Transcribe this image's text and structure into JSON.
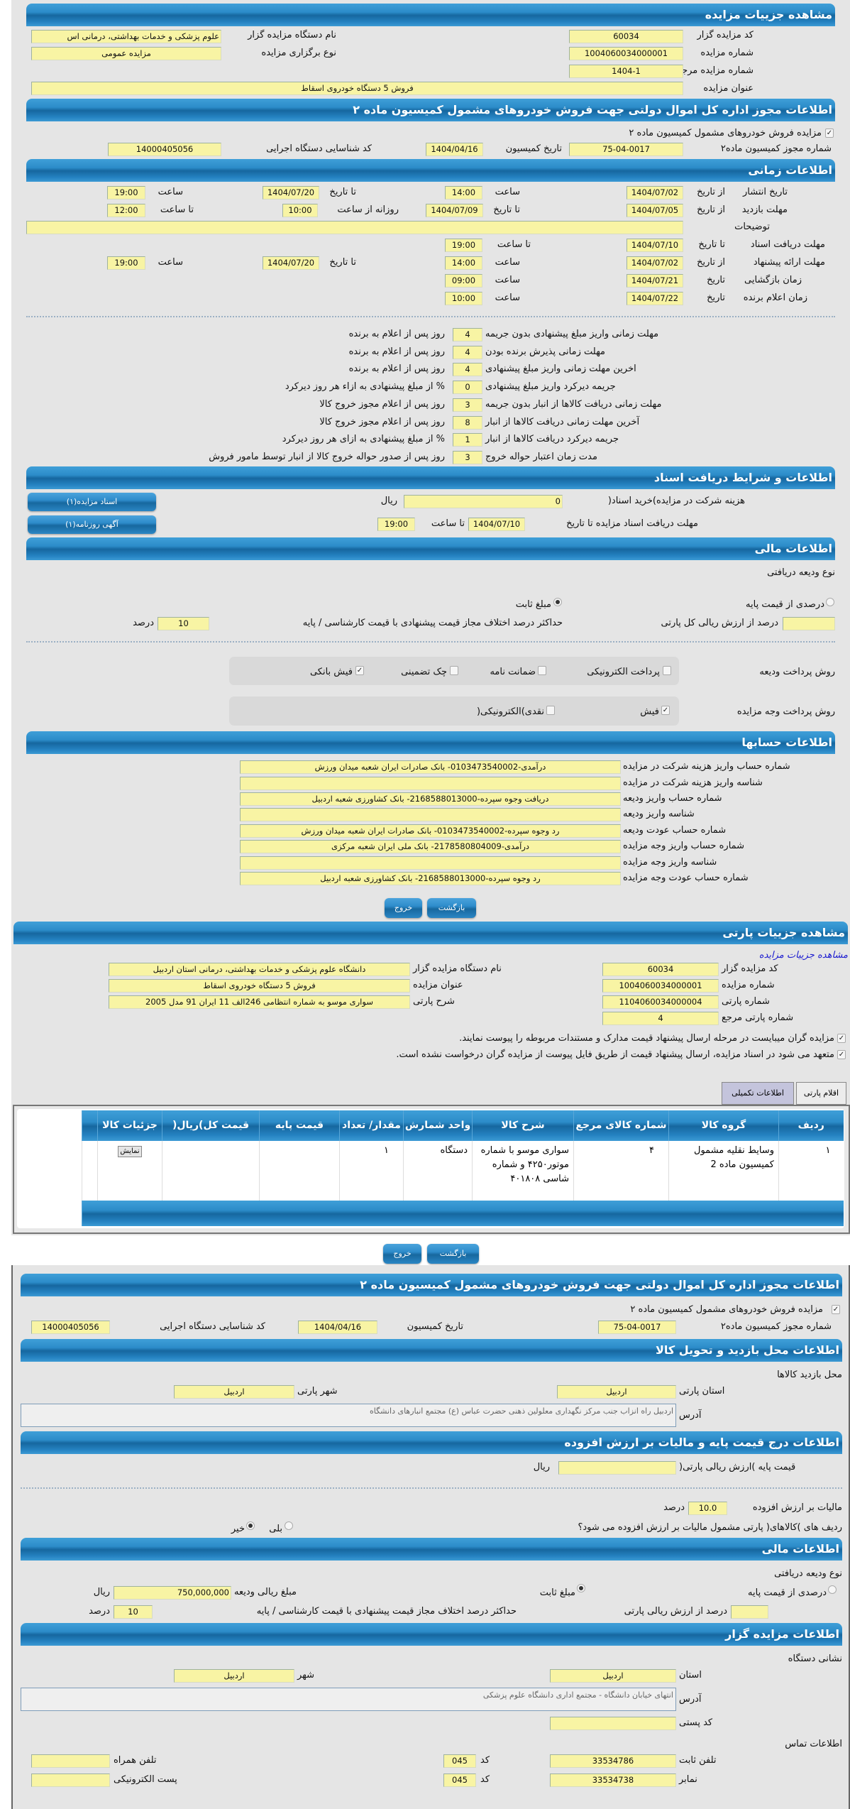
{
  "auction": {
    "title": "مشاهده جزییات مزایده",
    "code_label": "کد مزایده گزار",
    "code": "60034",
    "org_label": "نام دستگاه مزایده گزار",
    "org": "علوم پزشکی و خدمات بهداشتی، درمانی اس",
    "number_label": "شماره مزایده",
    "number": "1004060034000001",
    "type_label": "نوع برگزاری مزایده",
    "type": "مزایده عمومی",
    "ref_label": "شماره مزایده مرجع",
    "ref": "1404-1",
    "subject_label": "عنوان مزایده",
    "subject": "فروش 5 دستگاه خودروی اسقاط"
  },
  "permit": {
    "title": "اطلاعات مجوز اداره کل اموال دولتی جهت فروش خودروهای مشمول کمیسیون ماده ۲",
    "checkbox_label": "مزایده فروش خودروهای مشمول کمیسیون ماده ۲",
    "checked": true,
    "permit_no_label": "شماره مجوز کمیسیون ماده۲",
    "permit_no": "75-04-0017",
    "date_label": "تاریخ کمیسیون",
    "date": "1404/04/16",
    "org_id_label": "کد شناسایی دستگاه اجرایی",
    "org_id": "14000405056"
  },
  "timing": {
    "title": "اطلاعات زمانی",
    "from_date": "از تاریخ",
    "to_date": "تا تاریخ",
    "date": "تاریخ",
    "hour": "ساعت",
    "to_hour": "تا ساعت",
    "daily_from": "روزانه از ساعت",
    "publish_label": "تاریخ انتشار",
    "publish_from": "1404/07/02",
    "publish_from_time": "14:00",
    "publish_to": "1404/07/20",
    "publish_to_time": "19:00",
    "visit_label": "مهلت بازدید",
    "visit_from": "1404/07/05",
    "visit_to": "1404/07/09",
    "visit_daily_from": "10:00",
    "visit_daily_to": "12:00",
    "desc_label": "توضیحات",
    "desc": "",
    "docs_label": "مهلت دریافت اسناد",
    "docs_to": "1404/07/10",
    "docs_to_time": "19:00",
    "offer_label": "مهلت ارائه پیشنهاد",
    "offer_from": "1404/07/02",
    "offer_from_time": "14:00",
    "offer_to": "1404/07/20",
    "offer_to_time": "19:00",
    "opening_label": "زمان بازگشایی",
    "opening_date": "1404/07/21",
    "opening_time": "09:00",
    "winner_label": "زمان اعلام برنده",
    "winner_date": "1404/07/22",
    "winner_time": "10:00"
  },
  "deadlines": [
    {
      "label": "مهلت زمانی واریز مبلغ پیشنهادی بدون جریمه",
      "value": "4",
      "suffix": "روز پس از اعلام به برنده"
    },
    {
      "label": "مهلت زمانی پذیرش برنده بودن",
      "value": "4",
      "suffix": "روز پس از اعلام به برنده"
    },
    {
      "label": "اخرین مهلت زمانی واریز مبلغ پیشنهادی",
      "value": "4",
      "suffix": "روز پس از اعلام به برنده"
    },
    {
      "label": "جریمه دیرکرد واریز مبلغ پیشنهادی",
      "value": "0",
      "suffix": "% از مبلغ پیشنهادی به ازاء هر روز دیرکرد"
    },
    {
      "label": "مهلت زمانی دریافت کالاها از انبار بدون جریمه",
      "value": "3",
      "suffix": "روز پس از اعلام مجوز خروج کالا"
    },
    {
      "label": "آخرین مهلت زمانی دریافت کالاها از انبار",
      "value": "8",
      "suffix": "روز پس از اعلام مجوز خروج کالا"
    },
    {
      "label": "جریمه دیرکرد دریافت کالاها از انبار",
      "value": "1",
      "suffix": "% از مبلغ پیشنهادی به ازای هر روز دیرکرد"
    },
    {
      "label": "مدت زمان اعتبار حواله خروج",
      "value": "3",
      "suffix": "روز پس از صدور حواله خروج کالا از انبار توسط مامور فروش"
    }
  ],
  "documents": {
    "title": "اطلاعات و شرایط دریافت اسناد",
    "fee_label": "هزینه شرکت در مزایده)خرید اسناد(",
    "fee": "0",
    "currency": "ریال",
    "deadline_label": "مهلت دریافت اسناد مزایده تا تاریخ",
    "deadline_date": "1404/07/10",
    "to_hour": "تا ساعت",
    "deadline_time": "19:00",
    "docs_button": "اسناد مزایده(۱)",
    "ad_button": "آگهی روزنامه(۱)"
  },
  "finance": {
    "title": "اطلاعات مالی",
    "deposit_type_label": "نوع ودیعه دریافتی",
    "opt_percent": "درصدی از قیمت پایه",
    "opt_fixed": "مبلغ ثابت",
    "selected": "مبلغ ثابت",
    "percent_of_total": "درصد از ارزش ریالی کل پارتی",
    "percent_value": "",
    "max_diff_label": "حداکثر درصد اختلاف مجاز قیمت پیشنهادی با قیمت کارشناسی / پایه",
    "max_diff": "10",
    "percent_unit": "درصد",
    "deposit_method_label": "روش پرداخت ودیعه",
    "deposit_methods": [
      {
        "label": "پرداخت الکترونیکی",
        "checked": false
      },
      {
        "label": "ضمانت نامه",
        "checked": false
      },
      {
        "label": "چک تضمینی",
        "checked": false
      },
      {
        "label": "فیش بانکی",
        "checked": true
      }
    ],
    "payment_method_label": "روش پرداخت وجه مزایده",
    "payment_methods": [
      {
        "label": "فیش",
        "checked": true
      },
      {
        "label": "نقدی)الکترونیکی(",
        "checked": false
      }
    ]
  },
  "accounts": {
    "title": "اطلاعات حسابها",
    "rows": [
      {
        "label": "شماره حساب واریز هزینه شرکت در مزایده",
        "value": "درآمدی-0103473540002- بانک صادرات ایران شعبه میدان ورزش"
      },
      {
        "label": "شناسه واریز هزینه شرکت در مزایده",
        "value": ""
      },
      {
        "label": "شماره حساب واریز ودیعه",
        "value": "دریافت وجوه سپرده-2168588013000- بانک کشاورزی شعبه اردبیل"
      },
      {
        "label": "شناسه واریز ودیعه",
        "value": ""
      },
      {
        "label": "شماره حساب عودت ودیعه",
        "value": "رد وجوه سپرده-0103473540002- بانک صادرات ایران شعبه میدان ورزش"
      },
      {
        "label": "شماره حساب واریز وجه مزایده",
        "value": "درآمدی-2178580804009- بانک ملی ایران شعبه مرکزی"
      },
      {
        "label": "شناسه واریز وجه مزایده",
        "value": ""
      },
      {
        "label": "شماره حساب عودت وجه مزایده",
        "value": "رد وجوه سپرده-2168588013000- بانک کشاورزی شعبه اردبیل"
      }
    ]
  },
  "actions": {
    "back": "بازگشت",
    "exit": "خروج"
  },
  "lot": {
    "title": "مشاهده جزییات پارتی",
    "auction_link": "مشاهده جزییات مزایده",
    "code_label": "کد مزایده گزار",
    "code": "60034",
    "number_label": "شماره مزایده",
    "number": "1004060034000001",
    "lot_no_label": "شماره پارتی",
    "lot_no": "1104060034000004",
    "lot_ref_label": "شماره پارتی مرجع",
    "lot_ref": "4",
    "org_label": "نام دستگاه مزایده گزار",
    "org": "دانشگاه علوم پزشکی و خدمات بهداشتی، درمانی استان اردبیل",
    "subject_label": "عنوان مزایده",
    "subject": "فروش 5 دستگاه خودروی اسقاط",
    "desc_label": "شرح پارتی",
    "desc": "سواری موسو  به شماره انتظامی 246الف 11 ایران  91 مدل 2005",
    "check1": "مزایده گران میبایست در مرحله ارسال پیشنهاد قیمت مدارک و مستندات مربوطه را پیوست نمایند.",
    "check2": "متعهد می شود در اسناد مزایده، ارسال پیشنهاد قیمت از طریق فایل پیوست از مزایده گران درخواست نشده است.",
    "tabs": [
      {
        "label": "اقلام پارتی",
        "active": true
      },
      {
        "label": "اطلاعات تکمیلی",
        "active": false
      }
    ],
    "table": {
      "headers": [
        "ردیف",
        "گروه کالا",
        "شماره کالای مرجع",
        "شرح کالا",
        "واحد شمارش",
        "مقدار/ تعداد",
        "قیمت پایه",
        "قیمت کل)ریال(",
        "جزئیات کالا"
      ],
      "rows": [
        {
          "row": "۱",
          "group": "وسایط نقلیه مشمول کمیسیون ماده 2",
          "ref": "۴",
          "desc": "سواری موسو با شماره موتور۴۲۵۰ و شماره شاسی ۴۰۱۸۰۸",
          "unit": "دستگاه",
          "qty": "۱",
          "base_price": "",
          "total_price": "",
          "details_button": "نمایش"
        }
      ]
    }
  },
  "permit2": {
    "title": "اطلاعات مجوز اداره کل اموال دولتی جهت فروش خودروهای مشمول کمیسیون ماده ۲",
    "checkbox_label": "مزایده فروش خودروهای مشمول کمیسیون ماده ۲",
    "permit_no_label": "شماره مجوز کمیسیون ماده۲",
    "permit_no": "75-04-0017",
    "date_label": "تاریخ کمیسیون",
    "date": "1404/04/16",
    "org_id_label": "کد شناسایی دستگاه اجرایی",
    "org_id": "14000405056"
  },
  "visit": {
    "title": "اطلاعات محل بازدید و تحویل کالا",
    "place_label": "محل بازدید کالاها",
    "province_label": "استان پارتی",
    "province": "اردبیل",
    "city_label": "شهر پارتی",
    "city": "اردبیل",
    "address_label": "آدرس",
    "address": "اردبیل  راه انزاب جنب مرکز نگهداری معلولین ذهنی حضرت عباس (ع)  مجتمع انبارهای دانشگاه"
  },
  "pricing": {
    "title": "اطلاعات درج قیمت پایه و مالیات بر ارزش افزوده",
    "base_label": "قیمت پایه )ارزش ریالی پارتی(",
    "base": "",
    "currency": "ریال",
    "vat_label": "مالیات بر ارزش افزوده",
    "vat": "10.0",
    "percent": "درصد",
    "vat_question": "ردیف های )کالاهای( پارتی مشمول مالیات بر ارزش افزوده می شود؟",
    "yes": "بلی",
    "no": "خیر",
    "selected": "خیر"
  },
  "finance2": {
    "title": "اطلاعات مالی",
    "deposit_type_label": "نوع ودیعه دریافتی",
    "opt_percent": "درصدی از قیمت پایه",
    "opt_fixed": "مبلغ ثابت",
    "selected": "مبلغ ثابت",
    "deposit_amount_label": "مبلغ ریالی ودیعه",
    "deposit_amount": "750,000,000",
    "currency": "ریال",
    "percent_of_total": "درصد از ارزش ریالی پارتی",
    "percent_value": "",
    "max_diff_label": "حداکثر درصد اختلاف مجاز قیمت پیشنهادی با قیمت کارشناسی / پایه",
    "max_diff": "10",
    "percent_unit": "درصد"
  },
  "organizer": {
    "title": "اطلاعات مزایده گزار",
    "address_section": "نشانی دستگاه",
    "province_label": "استان",
    "province": "اردبیل",
    "city_label": "شهر",
    "city": "اردبیل",
    "address_label": "آدرس",
    "address": "انتهای خیابان دانشگاه - مجتمع اداری دانشگاه علوم پزشکی",
    "postal_label": "کد پستی",
    "postal": "",
    "contact_section": "اطلاعات تماس",
    "phone_label": "تلفن ثابت",
    "phone": "33534786",
    "code_label": "کد",
    "phone_code": "045",
    "mobile_label": "تلفن همراه",
    "mobile": "",
    "fax_label": "نمابر",
    "fax": "33534738",
    "fax_code": "045",
    "email_label": "پست الکترونیکی",
    "email": ""
  }
}
